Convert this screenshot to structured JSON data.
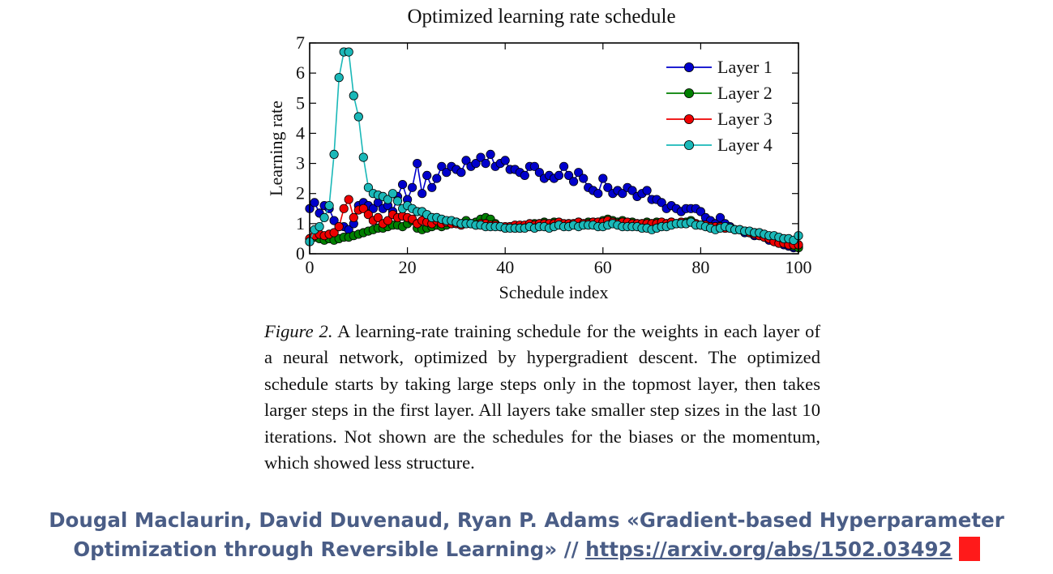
{
  "chart_data": {
    "type": "line",
    "title": "Optimized learning rate schedule",
    "xlabel": "Schedule index",
    "ylabel": "Learning rate",
    "xlim": [
      0,
      100
    ],
    "ylim": [
      0,
      7
    ],
    "xticks": [
      0,
      20,
      40,
      60,
      80,
      100
    ],
    "yticks": [
      0,
      1,
      2,
      3,
      4,
      5,
      6,
      7
    ],
    "grid": false,
    "legend_position": "top-right",
    "series": [
      {
        "name": "Layer 1",
        "color": "#0000cc",
        "x": [
          0,
          1,
          2,
          3,
          4,
          5,
          6,
          7,
          8,
          9,
          10,
          11,
          12,
          13,
          14,
          15,
          16,
          17,
          18,
          19,
          20,
          21,
          22,
          23,
          24,
          25,
          26,
          27,
          28,
          29,
          30,
          31,
          32,
          33,
          34,
          35,
          36,
          37,
          38,
          39,
          40,
          41,
          42,
          43,
          44,
          45,
          46,
          47,
          48,
          49,
          50,
          51,
          52,
          53,
          54,
          55,
          56,
          57,
          58,
          59,
          60,
          61,
          62,
          63,
          64,
          65,
          66,
          67,
          68,
          69,
          70,
          71,
          72,
          73,
          74,
          75,
          76,
          77,
          78,
          79,
          80,
          81,
          82,
          83,
          84,
          85,
          86,
          87,
          88,
          89,
          90,
          91,
          92,
          93,
          94,
          95,
          96,
          97,
          98,
          99,
          100
        ],
        "values": [
          1.5,
          1.7,
          1.35,
          1.6,
          1.5,
          1.1,
          0.9,
          0.9,
          0.8,
          1.0,
          1.6,
          1.7,
          1.6,
          1.5,
          1.7,
          1.5,
          1.6,
          1.4,
          1.9,
          2.3,
          1.8,
          2.2,
          3.0,
          2.0,
          2.6,
          2.2,
          2.5,
          2.9,
          2.7,
          2.9,
          2.8,
          2.7,
          3.1,
          2.9,
          3.0,
          3.2,
          3.0,
          3.3,
          2.9,
          3.0,
          3.1,
          2.8,
          2.8,
          2.7,
          2.6,
          2.9,
          2.9,
          2.7,
          2.5,
          2.6,
          2.5,
          2.6,
          2.9,
          2.6,
          2.4,
          2.7,
          2.5,
          2.2,
          2.1,
          2.0,
          2.5,
          2.2,
          2.0,
          2.1,
          2.0,
          2.2,
          2.1,
          1.9,
          2.0,
          2.1,
          1.8,
          1.8,
          1.7,
          1.5,
          1.6,
          1.5,
          1.4,
          1.5,
          1.5,
          1.5,
          1.4,
          1.2,
          1.1,
          1.0,
          1.2,
          1.0,
          0.9,
          0.8,
          0.8,
          0.7,
          0.7,
          0.6,
          0.6,
          0.55,
          0.45,
          0.45,
          0.35,
          0.3,
          0.25,
          0.2,
          0.25
        ]
      },
      {
        "name": "Layer 2",
        "color": "#007f00",
        "x": [
          0,
          1,
          2,
          3,
          4,
          5,
          6,
          7,
          8,
          9,
          10,
          11,
          12,
          13,
          14,
          15,
          16,
          17,
          18,
          19,
          20,
          21,
          22,
          23,
          24,
          25,
          26,
          27,
          28,
          29,
          30,
          31,
          32,
          33,
          34,
          35,
          36,
          37,
          38,
          39,
          40,
          41,
          42,
          43,
          44,
          45,
          46,
          47,
          48,
          49,
          50,
          51,
          52,
          53,
          54,
          55,
          56,
          57,
          58,
          59,
          60,
          61,
          62,
          63,
          64,
          65,
          66,
          67,
          68,
          69,
          70,
          71,
          72,
          73,
          74,
          75,
          76,
          77,
          78,
          79,
          80,
          81,
          82,
          83,
          84,
          85,
          86,
          87,
          88,
          89,
          90,
          91,
          92,
          93,
          94,
          95,
          96,
          97,
          98,
          99,
          100
        ],
        "values": [
          0.4,
          0.55,
          0.5,
          0.45,
          0.5,
          0.45,
          0.5,
          0.55,
          0.55,
          0.6,
          0.65,
          0.7,
          0.75,
          0.8,
          0.85,
          0.85,
          0.9,
          0.95,
          0.95,
          0.9,
          1.0,
          1.1,
          0.85,
          0.8,
          0.85,
          0.9,
          0.95,
          0.9,
          0.95,
          1.0,
          1.05,
          1.0,
          1.1,
          1.0,
          1.05,
          1.15,
          1.2,
          1.15,
          1.0,
          0.9,
          0.85,
          0.9,
          0.85,
          0.85,
          0.9,
          0.95,
          1.0,
          1.0,
          1.05,
          1.0,
          1.05,
          1.0,
          0.95,
          1.0,
          1.0,
          1.05,
          1.0,
          1.05,
          1.05,
          1.05,
          1.1,
          1.15,
          1.1,
          1.05,
          1.1,
          1.0,
          1.05,
          1.0,
          1.0,
          1.05,
          1.0,
          1.05,
          1.0,
          1.0,
          1.05,
          1.0,
          1.0,
          1.05,
          1.1,
          1.0,
          0.95,
          0.95,
          0.9,
          0.9,
          0.9,
          0.85,
          0.85,
          0.8,
          0.8,
          0.75,
          0.7,
          0.7,
          0.65,
          0.6,
          0.55,
          0.5,
          0.45,
          0.4,
          0.35,
          0.25,
          0.2
        ]
      },
      {
        "name": "Layer 3",
        "color": "#ee0000",
        "x": [
          0,
          1,
          2,
          3,
          4,
          5,
          6,
          7,
          8,
          9,
          10,
          11,
          12,
          13,
          14,
          15,
          16,
          17,
          18,
          19,
          20,
          21,
          22,
          23,
          24,
          25,
          26,
          27,
          28,
          29,
          30,
          31,
          32,
          33,
          34,
          35,
          36,
          37,
          38,
          39,
          40,
          41,
          42,
          43,
          44,
          45,
          46,
          47,
          48,
          49,
          50,
          51,
          52,
          53,
          54,
          55,
          56,
          57,
          58,
          59,
          60,
          61,
          62,
          63,
          64,
          65,
          66,
          67,
          68,
          69,
          70,
          71,
          72,
          73,
          74,
          75,
          76,
          77,
          78,
          79,
          80,
          81,
          82,
          83,
          84,
          85,
          86,
          87,
          88,
          89,
          90,
          91,
          92,
          93,
          94,
          95,
          96,
          97,
          98,
          99,
          100
        ],
        "values": [
          0.5,
          0.6,
          0.65,
          0.6,
          0.65,
          0.7,
          0.9,
          1.5,
          1.8,
          1.2,
          1.45,
          1.5,
          1.3,
          1.1,
          1.2,
          1.0,
          1.1,
          1.3,
          1.2,
          1.25,
          1.2,
          1.15,
          1.0,
          1.1,
          1.05,
          1.0,
          1.1,
          1.0,
          1.05,
          1.0,
          1.0,
          0.95,
          1.0,
          1.0,
          0.95,
          1.0,
          1.0,
          0.95,
          0.95,
          0.9,
          0.9,
          0.9,
          0.95,
          0.95,
          0.95,
          1.0,
          0.95,
          1.0,
          1.0,
          1.0,
          1.0,
          1.05,
          1.0,
          1.0,
          1.0,
          1.05,
          1.0,
          1.0,
          1.05,
          1.05,
          1.05,
          1.1,
          1.05,
          1.0,
          1.05,
          1.05,
          1.0,
          1.0,
          1.0,
          1.0,
          1.0,
          1.0,
          1.05,
          1.0,
          1.05,
          1.0,
          1.05,
          1.0,
          1.05,
          1.0,
          0.95,
          0.95,
          0.9,
          0.9,
          0.9,
          0.85,
          0.85,
          0.8,
          0.8,
          0.75,
          0.7,
          0.65,
          0.6,
          0.55,
          0.5,
          0.4,
          0.35,
          0.35,
          0.3,
          0.3,
          0.3
        ]
      },
      {
        "name": "Layer 4",
        "color": "#1ab8b8",
        "x": [
          0,
          1,
          2,
          3,
          4,
          5,
          6,
          7,
          8,
          9,
          10,
          11,
          12,
          13,
          14,
          15,
          16,
          17,
          18,
          19,
          20,
          21,
          22,
          23,
          24,
          25,
          26,
          27,
          28,
          29,
          30,
          31,
          32,
          33,
          34,
          35,
          36,
          37,
          38,
          39,
          40,
          41,
          42,
          43,
          44,
          45,
          46,
          47,
          48,
          49,
          50,
          51,
          52,
          53,
          54,
          55,
          56,
          57,
          58,
          59,
          60,
          61,
          62,
          63,
          64,
          65,
          66,
          67,
          68,
          69,
          70,
          71,
          72,
          73,
          74,
          75,
          76,
          77,
          78,
          79,
          80,
          81,
          82,
          83,
          84,
          85,
          86,
          87,
          88,
          89,
          90,
          91,
          92,
          93,
          94,
          95,
          96,
          97,
          98,
          99,
          100
        ],
        "values": [
          0.4,
          0.8,
          0.9,
          1.2,
          1.6,
          3.3,
          5.85,
          6.7,
          6.7,
          5.25,
          4.55,
          3.2,
          2.2,
          2.0,
          1.95,
          1.9,
          1.8,
          2.0,
          1.75,
          1.5,
          1.6,
          1.5,
          1.4,
          1.4,
          1.3,
          1.2,
          1.2,
          1.15,
          1.1,
          1.1,
          1.05,
          1.0,
          1.0,
          1.0,
          0.95,
          0.95,
          0.9,
          0.9,
          0.9,
          0.9,
          0.85,
          0.85,
          0.85,
          0.85,
          0.85,
          0.9,
          0.85,
          0.9,
          0.9,
          0.85,
          0.9,
          0.95,
          0.9,
          0.9,
          0.95,
          0.9,
          0.95,
          0.95,
          0.95,
          0.9,
          0.9,
          0.95,
          1.0,
          0.95,
          0.9,
          0.9,
          0.9,
          0.9,
          0.85,
          0.85,
          0.8,
          0.85,
          0.9,
          0.9,
          0.95,
          1.0,
          1.0,
          1.0,
          1.05,
          0.95,
          0.95,
          0.9,
          0.85,
          0.8,
          0.85,
          0.9,
          0.85,
          0.8,
          0.8,
          0.75,
          0.75,
          0.7,
          0.7,
          0.65,
          0.6,
          0.6,
          0.55,
          0.5,
          0.5,
          0.45,
          0.6
        ]
      }
    ]
  },
  "caption": {
    "label": "Figure 2.",
    "text": " A learning-rate training schedule for the weights in each layer of a neural network, optimized by hypergradient descent. The optimized schedule starts by taking large steps only in the topmost layer, then takes larger steps in the first layer. All layers take smaller step sizes in the last 10 iterations. Not shown are the schedules for the biases or the momentum, which showed less structure."
  },
  "credit": {
    "text": "Dougal Maclaurin, David Duvenaud, Ryan P. Adams «Gradient-based Hyperparameter Optimization through Reversible Learning» // ",
    "link": "https://arxiv.org/abs/1502.03492",
    "cursor_color": "#ff1a1a"
  }
}
